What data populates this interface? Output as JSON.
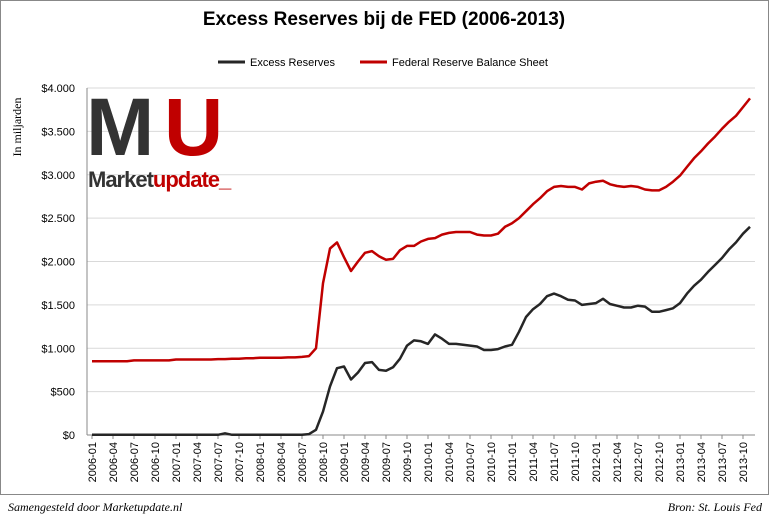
{
  "chart_data": {
    "type": "line",
    "title": "Excess Reserves bij de FED (2006-2013)",
    "y_label": "In miljarden",
    "logo_letters": [
      "M",
      "U"
    ],
    "logo_words": [
      "Market",
      "update_"
    ],
    "footer_left": "Samengesteld door Marketupdate.nl",
    "footer_right": "Bron: St. Louis Fed",
    "grid": true,
    "categories": [
      "2006-01",
      null,
      null,
      "2006-04",
      null,
      null,
      "2006-07",
      null,
      null,
      "2006-10",
      null,
      null,
      "2007-01",
      null,
      null,
      "2007-04",
      null,
      null,
      "2007-07",
      null,
      null,
      "2007-10",
      null,
      null,
      "2008-01",
      null,
      null,
      "2008-04",
      null,
      null,
      "2008-07",
      null,
      null,
      "2008-10",
      null,
      null,
      "2009-01",
      null,
      null,
      "2009-04",
      null,
      null,
      "2009-07",
      null,
      null,
      "2009-10",
      null,
      null,
      "2010-01",
      null,
      null,
      "2010-04",
      null,
      null,
      "2010-07",
      null,
      null,
      "2010-10",
      null,
      null,
      "2011-01",
      null,
      null,
      "2011-04",
      null,
      null,
      "2011-07",
      null,
      null,
      "2011-10",
      null,
      null,
      "2012-01",
      null,
      null,
      "2012-04",
      null,
      null,
      "2012-07",
      null,
      null,
      "2012-10",
      null,
      null,
      "2013-01",
      null,
      null,
      "2013-04",
      null,
      null,
      "2013-07",
      null,
      null,
      "2013-10",
      null
    ],
    "series": [
      {
        "name": "Excess Reserves",
        "color": "#262626",
        "values": [
          2,
          2,
          2,
          2,
          2,
          2,
          2,
          2,
          2,
          2,
          2,
          2,
          2,
          2,
          2,
          2,
          2,
          2,
          2,
          20,
          2,
          2,
          2,
          2,
          2,
          2,
          2,
          2,
          2,
          2,
          2,
          10,
          60,
          270,
          560,
          770,
          790,
          640,
          720,
          830,
          840,
          750,
          740,
          780,
          880,
          1030,
          1090,
          1080,
          1050,
          1160,
          1110,
          1050,
          1050,
          1040,
          1030,
          1020,
          980,
          980,
          990,
          1020,
          1040,
          1190,
          1360,
          1450,
          1510,
          1600,
          1630,
          1600,
          1560,
          1550,
          1500,
          1510,
          1520,
          1570,
          1510,
          1490,
          1470,
          1470,
          1490,
          1480,
          1420,
          1420,
          1440,
          1460,
          1520,
          1630,
          1720,
          1790,
          1880,
          1960,
          2040,
          2140,
          2220,
          2320,
          2400
        ]
      },
      {
        "name": "Federal Reserve Balance Sheet",
        "color": "#c00000",
        "values": [
          850,
          850,
          850,
          850,
          850,
          850,
          860,
          860,
          860,
          860,
          860,
          860,
          870,
          870,
          870,
          870,
          870,
          870,
          875,
          875,
          880,
          880,
          885,
          885,
          890,
          890,
          890,
          890,
          895,
          895,
          900,
          910,
          1000,
          1750,
          2150,
          2220,
          2050,
          1890,
          2000,
          2100,
          2120,
          2060,
          2020,
          2030,
          2130,
          2180,
          2180,
          2230,
          2260,
          2270,
          2310,
          2330,
          2340,
          2340,
          2340,
          2310,
          2300,
          2300,
          2320,
          2400,
          2440,
          2500,
          2580,
          2660,
          2730,
          2810,
          2860,
          2870,
          2860,
          2860,
          2830,
          2900,
          2920,
          2930,
          2890,
          2870,
          2860,
          2870,
          2860,
          2830,
          2820,
          2820,
          2860,
          2920,
          2990,
          3090,
          3190,
          3270,
          3360,
          3440,
          3530,
          3610,
          3680,
          3780,
          3880
        ]
      }
    ],
    "ylim": [
      0,
      4000
    ],
    "yticks": [
      {
        "value": 0,
        "label": "$0"
      },
      {
        "value": 500,
        "label": "$500"
      },
      {
        "value": 1000,
        "label": "$1.000"
      },
      {
        "value": 1500,
        "label": "$1.500"
      },
      {
        "value": 2000,
        "label": "$2.000"
      },
      {
        "value": 2500,
        "label": "$2.500"
      },
      {
        "value": 3000,
        "label": "$3.000"
      },
      {
        "value": 3500,
        "label": "$3.500"
      },
      {
        "value": 4000,
        "label": "$4.000"
      }
    ]
  }
}
